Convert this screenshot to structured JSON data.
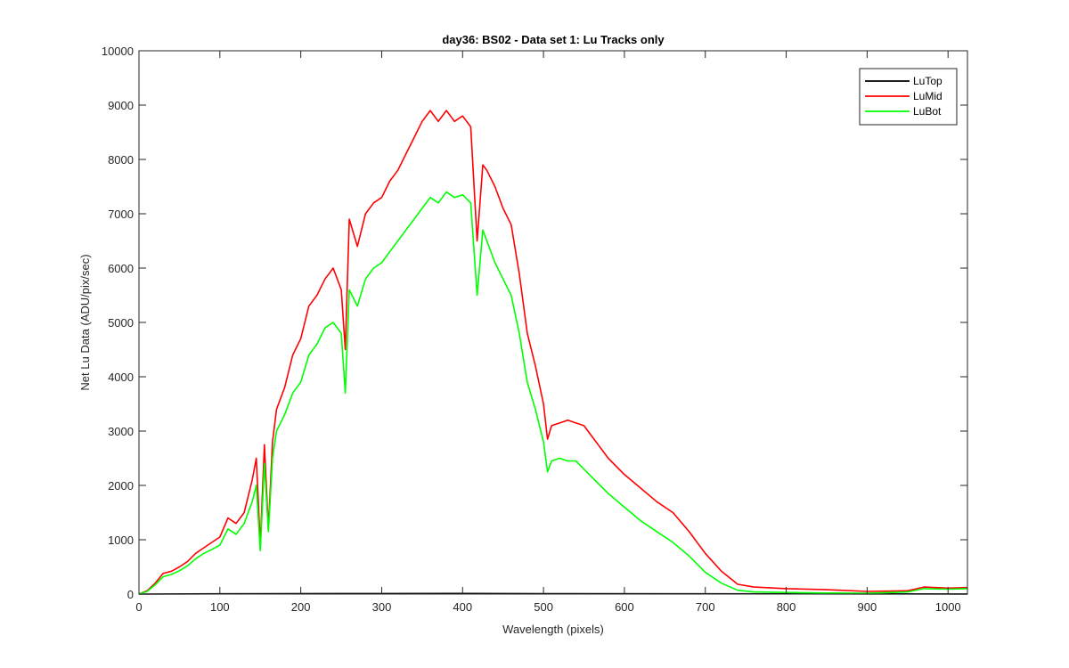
{
  "chart_data": {
    "type": "line",
    "title": "day36: BS02 - Data set 1: Lu Tracks only",
    "xlabel": "Wavelength (pixels)",
    "ylabel": "Net Lu Data (ADU/pix/sec)",
    "xlim": [
      0,
      1024
    ],
    "ylim": [
      0,
      10000
    ],
    "xticks": [
      0,
      100,
      200,
      300,
      400,
      500,
      600,
      700,
      800,
      900,
      1000
    ],
    "yticks": [
      0,
      1000,
      2000,
      3000,
      4000,
      5000,
      6000,
      7000,
      8000,
      9000,
      10000
    ],
    "grid": false,
    "legend_position": "top-right",
    "series": [
      {
        "name": "LuTop",
        "color": "#000000",
        "points": [
          [
            0,
            0
          ],
          [
            100,
            5
          ],
          [
            300,
            10
          ],
          [
            400,
            12
          ],
          [
            500,
            8
          ],
          [
            700,
            5
          ],
          [
            900,
            3
          ],
          [
            1024,
            2
          ]
        ]
      },
      {
        "name": "LuMid",
        "color": "#ff0000",
        "points": [
          [
            0,
            0
          ],
          [
            10,
            60
          ],
          [
            20,
            200
          ],
          [
            30,
            380
          ],
          [
            40,
            420
          ],
          [
            50,
            500
          ],
          [
            60,
            600
          ],
          [
            70,
            750
          ],
          [
            80,
            850
          ],
          [
            90,
            950
          ],
          [
            100,
            1050
          ],
          [
            110,
            1400
          ],
          [
            120,
            1300
          ],
          [
            130,
            1500
          ],
          [
            140,
            2100
          ],
          [
            145,
            2500
          ],
          [
            150,
            900
          ],
          [
            155,
            2750
          ],
          [
            160,
            1200
          ],
          [
            165,
            2800
          ],
          [
            170,
            3400
          ],
          [
            180,
            3800
          ],
          [
            190,
            4400
          ],
          [
            200,
            4700
          ],
          [
            210,
            5300
          ],
          [
            220,
            5500
          ],
          [
            230,
            5800
          ],
          [
            240,
            6000
          ],
          [
            250,
            5600
          ],
          [
            255,
            4500
          ],
          [
            260,
            6900
          ],
          [
            270,
            6400
          ],
          [
            280,
            7000
          ],
          [
            290,
            7200
          ],
          [
            300,
            7300
          ],
          [
            310,
            7600
          ],
          [
            320,
            7800
          ],
          [
            330,
            8100
          ],
          [
            340,
            8400
          ],
          [
            350,
            8700
          ],
          [
            360,
            8900
          ],
          [
            370,
            8700
          ],
          [
            380,
            8900
          ],
          [
            390,
            8700
          ],
          [
            400,
            8800
          ],
          [
            410,
            8600
          ],
          [
            418,
            6500
          ],
          [
            425,
            7900
          ],
          [
            430,
            7800
          ],
          [
            440,
            7500
          ],
          [
            450,
            7100
          ],
          [
            460,
            6800
          ],
          [
            470,
            5900
          ],
          [
            480,
            4800
          ],
          [
            490,
            4200
          ],
          [
            500,
            3500
          ],
          [
            505,
            2850
          ],
          [
            510,
            3100
          ],
          [
            520,
            3150
          ],
          [
            530,
            3200
          ],
          [
            540,
            3150
          ],
          [
            550,
            3100
          ],
          [
            560,
            2900
          ],
          [
            570,
            2700
          ],
          [
            580,
            2500
          ],
          [
            600,
            2200
          ],
          [
            620,
            1950
          ],
          [
            640,
            1700
          ],
          [
            660,
            1500
          ],
          [
            680,
            1150
          ],
          [
            700,
            750
          ],
          [
            720,
            420
          ],
          [
            740,
            180
          ],
          [
            760,
            130
          ],
          [
            800,
            100
          ],
          [
            850,
            80
          ],
          [
            900,
            50
          ],
          [
            950,
            60
          ],
          [
            970,
            130
          ],
          [
            1000,
            110
          ],
          [
            1024,
            120
          ]
        ]
      },
      {
        "name": "LuBot",
        "color": "#00ff00",
        "points": [
          [
            0,
            0
          ],
          [
            10,
            50
          ],
          [
            20,
            170
          ],
          [
            30,
            320
          ],
          [
            40,
            360
          ],
          [
            50,
            430
          ],
          [
            60,
            520
          ],
          [
            70,
            650
          ],
          [
            80,
            750
          ],
          [
            90,
            820
          ],
          [
            100,
            900
          ],
          [
            110,
            1200
          ],
          [
            120,
            1100
          ],
          [
            130,
            1300
          ],
          [
            140,
            1700
          ],
          [
            145,
            2000
          ],
          [
            150,
            800
          ],
          [
            155,
            2400
          ],
          [
            160,
            1150
          ],
          [
            165,
            2500
          ],
          [
            170,
            3000
          ],
          [
            180,
            3300
          ],
          [
            190,
            3700
          ],
          [
            200,
            3900
          ],
          [
            210,
            4400
          ],
          [
            220,
            4600
          ],
          [
            230,
            4900
          ],
          [
            240,
            5000
          ],
          [
            250,
            4800
          ],
          [
            255,
            3700
          ],
          [
            260,
            5600
          ],
          [
            270,
            5300
          ],
          [
            280,
            5800
          ],
          [
            290,
            6000
          ],
          [
            300,
            6100
          ],
          [
            310,
            6300
          ],
          [
            320,
            6500
          ],
          [
            330,
            6700
          ],
          [
            340,
            6900
          ],
          [
            350,
            7100
          ],
          [
            360,
            7300
          ],
          [
            370,
            7200
          ],
          [
            380,
            7400
          ],
          [
            390,
            7300
          ],
          [
            400,
            7350
          ],
          [
            410,
            7200
          ],
          [
            418,
            5500
          ],
          [
            425,
            6700
          ],
          [
            430,
            6500
          ],
          [
            440,
            6100
          ],
          [
            450,
            5800
          ],
          [
            460,
            5500
          ],
          [
            470,
            4800
          ],
          [
            480,
            3900
          ],
          [
            490,
            3400
          ],
          [
            500,
            2800
          ],
          [
            505,
            2250
          ],
          [
            510,
            2450
          ],
          [
            520,
            2500
          ],
          [
            530,
            2450
          ],
          [
            540,
            2450
          ],
          [
            550,
            2300
          ],
          [
            560,
            2150
          ],
          [
            570,
            2000
          ],
          [
            580,
            1850
          ],
          [
            600,
            1600
          ],
          [
            620,
            1350
          ],
          [
            640,
            1150
          ],
          [
            660,
            950
          ],
          [
            680,
            700
          ],
          [
            700,
            400
          ],
          [
            720,
            200
          ],
          [
            740,
            70
          ],
          [
            760,
            40
          ],
          [
            800,
            30
          ],
          [
            850,
            20
          ],
          [
            900,
            15
          ],
          [
            950,
            40
          ],
          [
            970,
            100
          ],
          [
            1000,
            90
          ],
          [
            1024,
            100
          ]
        ]
      }
    ]
  }
}
